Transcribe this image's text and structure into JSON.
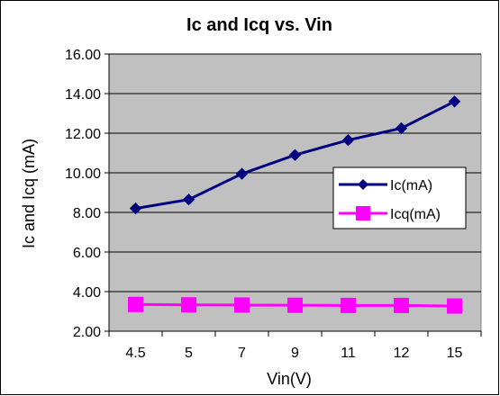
{
  "chart_data": {
    "type": "line",
    "title": "Ic and Icq vs. Vin",
    "xlabel": "Vin(V)",
    "ylabel": "Ic and Icq (mA)",
    "categories": [
      "4.5",
      "5",
      "7",
      "9",
      "11",
      "12",
      "15"
    ],
    "ylim": [
      2.0,
      16.0
    ],
    "yticks": [
      "2.00",
      "4.00",
      "6.00",
      "8.00",
      "10.00",
      "12.00",
      "14.00",
      "16.00"
    ],
    "grid": true,
    "legend_position": "right",
    "series": [
      {
        "name": "Ic(mA)",
        "values": [
          8.2,
          8.65,
          9.95,
          10.9,
          11.65,
          12.25,
          13.6
        ],
        "color": "#000080",
        "marker": "diamond"
      },
      {
        "name": "Icq(mA)",
        "values": [
          3.35,
          3.33,
          3.32,
          3.31,
          3.3,
          3.3,
          3.27
        ],
        "color": "#ff00ff",
        "marker": "square"
      }
    ],
    "plot_background": "#c0c0c0"
  }
}
